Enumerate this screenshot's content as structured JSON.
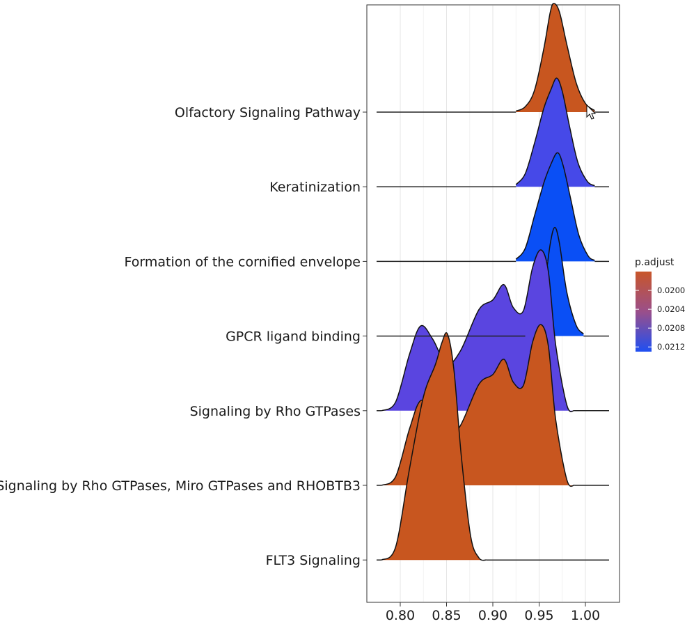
{
  "chart_data": {
    "type": "ridgeline",
    "xlabel": "",
    "ylabel": "",
    "xlim": [
      0.77,
      1.02
    ],
    "x_ticks": [
      0.8,
      0.85,
      0.9,
      0.95,
      1.0
    ],
    "x_tick_labels": [
      "0.80",
      "0.85",
      "0.90",
      "0.95",
      "1.00"
    ],
    "grid": "vertical",
    "legend": {
      "title": "p.adjust",
      "position": "right",
      "range": [
        0.0196,
        0.0213
      ],
      "ticks": [
        0.02,
        0.0204,
        0.0208,
        0.0212
      ],
      "tick_labels": [
        "0.0200",
        "0.0204",
        "0.0208",
        "0.0212"
      ],
      "color_low": "#c8562a",
      "color_high": "#1f4ff2"
    },
    "series": [
      {
        "name": "Olfactory Signaling Pathway",
        "p_adjust": 0.0197,
        "color": "#c8561f",
        "density": [
          [
            0.925,
            0.01
          ],
          [
            0.935,
            0.05
          ],
          [
            0.945,
            0.2
          ],
          [
            0.955,
            0.58
          ],
          [
            0.962,
            0.92
          ],
          [
            0.966,
            1.0
          ],
          [
            0.972,
            0.92
          ],
          [
            0.98,
            0.62
          ],
          [
            0.99,
            0.27
          ],
          [
            1.0,
            0.08
          ],
          [
            1.01,
            0.015
          ]
        ]
      },
      {
        "name": "Keratinization",
        "p_adjust": 0.021,
        "color": "#4649e8",
        "density": [
          [
            0.925,
            0.02
          ],
          [
            0.935,
            0.12
          ],
          [
            0.945,
            0.4
          ],
          [
            0.955,
            0.72
          ],
          [
            0.963,
            0.9
          ],
          [
            0.969,
            1.0
          ],
          [
            0.975,
            0.88
          ],
          [
            0.983,
            0.55
          ],
          [
            0.992,
            0.22
          ],
          [
            1.002,
            0.05
          ],
          [
            1.01,
            0.01
          ]
        ]
      },
      {
        "name": "Formation of the cornified envelope",
        "p_adjust": 0.0213,
        "color": "#0a4ff5",
        "density": [
          [
            0.925,
            0.02
          ],
          [
            0.935,
            0.12
          ],
          [
            0.945,
            0.42
          ],
          [
            0.955,
            0.72
          ],
          [
            0.963,
            0.9
          ],
          [
            0.97,
            1.0
          ],
          [
            0.976,
            0.88
          ],
          [
            0.984,
            0.58
          ],
          [
            0.993,
            0.24
          ],
          [
            1.003,
            0.05
          ],
          [
            1.01,
            0.01
          ]
        ]
      },
      {
        "name": "GPCR ligand binding",
        "p_adjust": 0.0213,
        "color": "#0a4ff5",
        "density": [
          [
            0.935,
            0.01
          ],
          [
            0.945,
            0.08
          ],
          [
            0.955,
            0.42
          ],
          [
            0.962,
            0.85
          ],
          [
            0.967,
            1.0
          ],
          [
            0.972,
            0.85
          ],
          [
            0.98,
            0.4
          ],
          [
            0.99,
            0.1
          ],
          [
            0.998,
            0.02
          ]
        ]
      },
      {
        "name": "Signaling by Rho GTPases",
        "p_adjust": 0.0209,
        "color": "#5a45e0",
        "density": [
          [
            0.78,
            0.0
          ],
          [
            0.795,
            0.08
          ],
          [
            0.81,
            0.52
          ],
          [
            0.822,
            0.78
          ],
          [
            0.835,
            0.66
          ],
          [
            0.85,
            0.43
          ],
          [
            0.865,
            0.55
          ],
          [
            0.885,
            0.93
          ],
          [
            0.9,
            1.02
          ],
          [
            0.912,
            1.16
          ],
          [
            0.922,
            0.95
          ],
          [
            0.933,
            0.92
          ],
          [
            0.943,
            1.32
          ],
          [
            0.952,
            1.48
          ],
          [
            0.96,
            1.28
          ],
          [
            0.968,
            0.6
          ],
          [
            0.98,
            0.05
          ],
          [
            0.988,
            0.0
          ]
        ]
      },
      {
        "name": "Signaling by Rho GTPases, Miro GTPases and RHOBTB3",
        "p_adjust": 0.0197,
        "color": "#c8561f",
        "density": [
          [
            0.78,
            0.0
          ],
          [
            0.795,
            0.08
          ],
          [
            0.81,
            0.52
          ],
          [
            0.822,
            0.78
          ],
          [
            0.835,
            0.66
          ],
          [
            0.85,
            0.43
          ],
          [
            0.865,
            0.55
          ],
          [
            0.885,
            0.93
          ],
          [
            0.9,
            1.02
          ],
          [
            0.912,
            1.16
          ],
          [
            0.922,
            0.95
          ],
          [
            0.933,
            0.92
          ],
          [
            0.943,
            1.32
          ],
          [
            0.952,
            1.48
          ],
          [
            0.96,
            1.28
          ],
          [
            0.968,
            0.6
          ],
          [
            0.98,
            0.05
          ],
          [
            0.988,
            0.0
          ]
        ]
      },
      {
        "name": "FLT3 Signaling",
        "p_adjust": 0.0197,
        "color": "#c8561f",
        "density": [
          [
            0.78,
            0.0
          ],
          [
            0.795,
            0.12
          ],
          [
            0.81,
            0.84
          ],
          [
            0.825,
            1.5
          ],
          [
            0.838,
            1.8
          ],
          [
            0.845,
            2.0
          ],
          [
            0.851,
            2.08
          ],
          [
            0.858,
            1.75
          ],
          [
            0.866,
            0.95
          ],
          [
            0.876,
            0.22
          ],
          [
            0.885,
            0.02
          ],
          [
            0.893,
            0.0
          ]
        ]
      }
    ]
  }
}
